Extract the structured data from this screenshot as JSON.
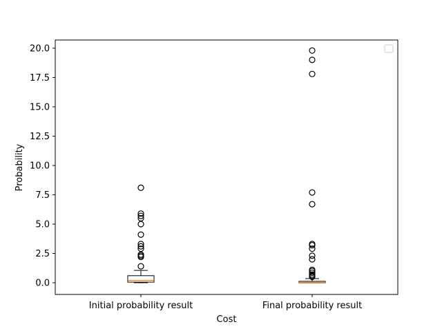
{
  "chart_data": {
    "type": "box",
    "title": "",
    "xlabel": "Cost",
    "ylabel": "Probability",
    "ylim": [
      -1.0,
      20.7
    ],
    "yticks": [
      0.0,
      2.5,
      5.0,
      7.5,
      10.0,
      12.5,
      15.0,
      17.5,
      20.0
    ],
    "ytick_labels": [
      "0.0",
      "2.5",
      "5.0",
      "7.5",
      "10.0",
      "12.5",
      "15.0",
      "17.5",
      "20.0"
    ],
    "categories": [
      "Initial probability result",
      "Final probability result"
    ],
    "boxes": [
      {
        "name": "Initial probability result",
        "whisker_low": 0.0,
        "q1": 0.05,
        "median": 0.2,
        "q3": 0.6,
        "whisker_high": 1.05,
        "fliers": [
          1.4,
          2.2,
          2.3,
          2.4,
          2.9,
          3.1,
          3.3,
          4.1,
          5.0,
          5.5,
          5.7,
          5.9,
          8.1
        ]
      },
      {
        "name": "Final probability result",
        "whisker_low": 0.0,
        "q1": 0.0,
        "median": 0.03,
        "q3": 0.12,
        "whisker_high": 0.35,
        "fliers": [
          0.5,
          0.6,
          0.7,
          0.85,
          1.0,
          1.1,
          2.0,
          2.3,
          2.9,
          3.2,
          3.3,
          6.7,
          7.7,
          17.8,
          19.0,
          19.8
        ]
      }
    ],
    "legend": {
      "visible": true,
      "placement": "top-right",
      "entries": []
    },
    "grid": false,
    "colors": {
      "median": "#ff7f0e",
      "box_edge": "#000000",
      "flier_edge": "#000000"
    }
  }
}
